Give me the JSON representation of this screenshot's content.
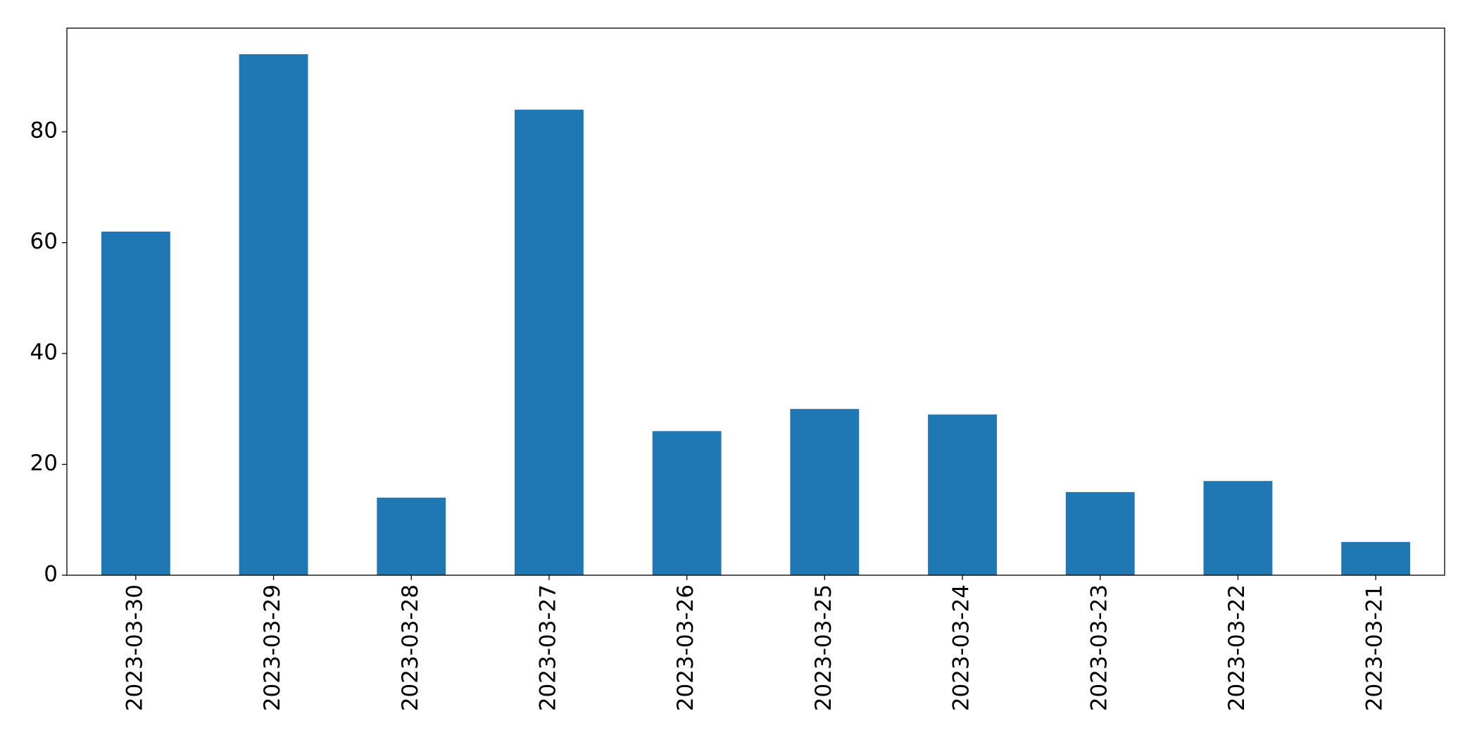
{
  "chart_data": {
    "type": "bar",
    "categories": [
      "2023-03-30",
      "2023-03-29",
      "2023-03-28",
      "2023-03-27",
      "2023-03-26",
      "2023-03-25",
      "2023-03-24",
      "2023-03-23",
      "2023-03-22",
      "2023-03-21"
    ],
    "values": [
      62,
      94,
      14,
      84,
      26,
      30,
      29,
      15,
      17,
      6
    ],
    "color": "#1f77b4",
    "ylim": [
      0,
      98.7
    ],
    "yticks": [
      0,
      20,
      40,
      60,
      80
    ],
    "grid": false
  }
}
